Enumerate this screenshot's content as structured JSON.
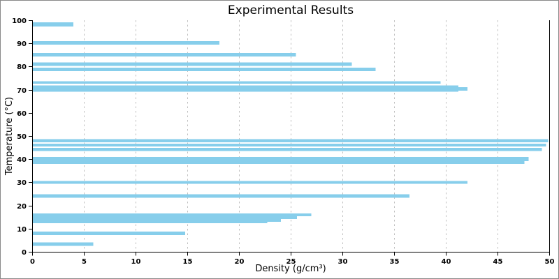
{
  "colors": {
    "bar": "#87CEEB",
    "grid": "#bfbfbf",
    "axis": "#000000",
    "background": "#ffffff",
    "frame_border": "#888888"
  },
  "chart_data": {
    "type": "bar",
    "orientation": "horizontal",
    "title": "Experimental Results",
    "xlabel": "Density (g/cm³)",
    "ylabel": "Temperature (°C)",
    "xlim": [
      0,
      50
    ],
    "ylim": [
      0,
      100
    ],
    "x_ticks": [
      0,
      5,
      10,
      15,
      20,
      25,
      30,
      35,
      40,
      45,
      50
    ],
    "y_ticks": [
      0,
      10,
      20,
      30,
      40,
      50,
      60,
      70,
      80,
      90,
      100
    ],
    "grid": "vertical dashed gridlines at every x tick, no horizontal gridlines",
    "legend": "none",
    "bars": [
      {
        "temperature": 98.2,
        "bar_height": 1.8,
        "density": 4.0
      },
      {
        "temperature": 90.2,
        "bar_height": 1.5,
        "density": 18.1
      },
      {
        "temperature": 85.1,
        "bar_height": 1.6,
        "density": 25.5
      },
      {
        "temperature": 81.1,
        "bar_height": 1.5,
        "density": 30.9
      },
      {
        "temperature": 78.8,
        "bar_height": 1.5,
        "density": 33.2
      },
      {
        "temperature": 73.1,
        "bar_height": 1.1,
        "density": 39.5
      },
      {
        "temperature": 70.5,
        "bar_height": 2.8,
        "density": 41.2
      },
      {
        "temperature": 70.4,
        "bar_height": 1.5,
        "density": 42.1
      },
      {
        "temperature": 48.0,
        "bar_height": 1.4,
        "density": 49.9
      },
      {
        "temperature": 46.1,
        "bar_height": 1.2,
        "density": 49.7
      },
      {
        "temperature": 44.2,
        "bar_height": 1.4,
        "density": 49.3
      },
      {
        "temperature": 40.1,
        "bar_height": 1.8,
        "density": 48.0
      },
      {
        "temperature": 38.6,
        "bar_height": 1.2,
        "density": 47.6
      },
      {
        "temperature": 29.9,
        "bar_height": 1.2,
        "density": 42.1
      },
      {
        "temperature": 24.1,
        "bar_height": 1.4,
        "density": 36.5
      },
      {
        "temperature": 16.0,
        "bar_height": 1.1,
        "density": 27.0
      },
      {
        "temperature": 14.85,
        "bar_height": 1.3,
        "density": 25.6
      },
      {
        "temperature": 13.6,
        "bar_height": 1.2,
        "density": 24.05
      },
      {
        "temperature": 12.7,
        "bar_height": 0.6,
        "density": 22.75
      },
      {
        "temperature": 8.05,
        "bar_height": 1.5,
        "density": 14.8
      },
      {
        "temperature": 3.25,
        "bar_height": 1.5,
        "density": 5.9
      }
    ]
  }
}
